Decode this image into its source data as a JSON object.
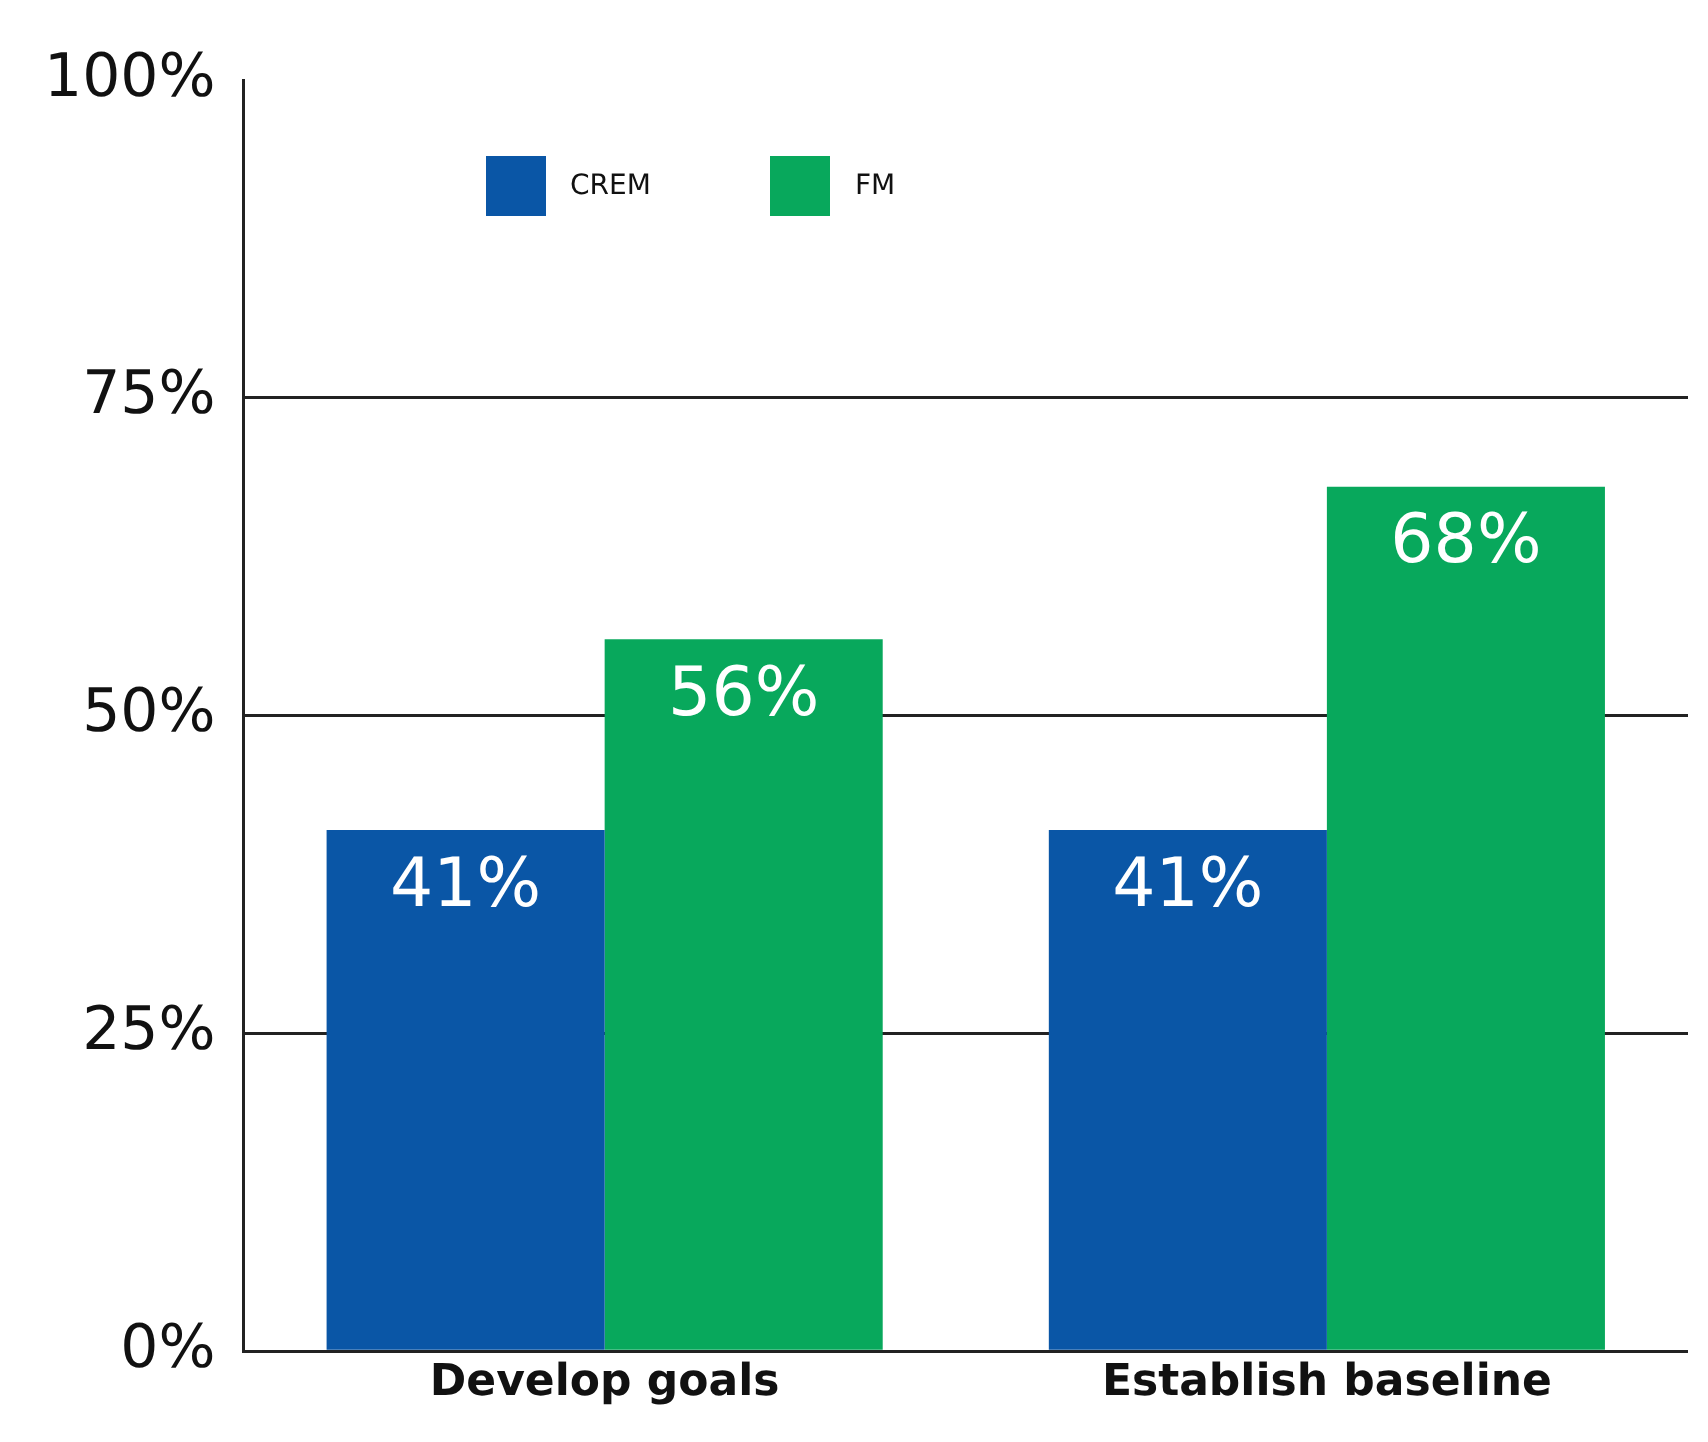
{
  "chart_data": {
    "type": "bar",
    "categories": [
      "Develop goals",
      "Establish baseline"
    ],
    "series": [
      {
        "name": "CREM",
        "color": "#0a56a6",
        "values": [
          41,
          41
        ]
      },
      {
        "name": "FM",
        "color": "#08a85c",
        "values": [
          56,
          68
        ]
      }
    ],
    "ylim": [
      0,
      100
    ],
    "yticks": [
      {
        "value": 0,
        "label": "0%"
      },
      {
        "value": 25,
        "label": "25%"
      },
      {
        "value": 50,
        "label": "50%"
      },
      {
        "value": 75,
        "label": "75%"
      },
      {
        "value": 100,
        "label": "100%"
      }
    ],
    "value_labels": [
      [
        "41%",
        "41%"
      ],
      [
        "56%",
        "68%"
      ]
    ],
    "grid": "y",
    "legend": "top left"
  }
}
